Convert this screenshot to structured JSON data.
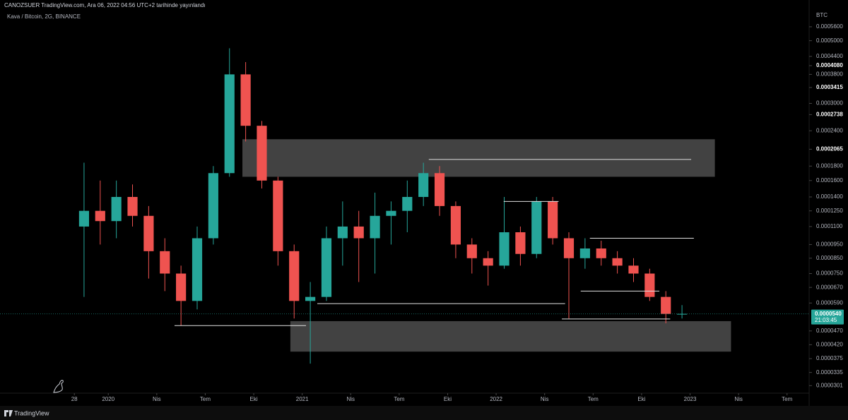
{
  "header": {
    "publisher": "CANOZSUER TradingView.com, Ara 06, 2022 04:56 UTC+2 tarihinde yayınlandı",
    "brand": "TradingView"
  },
  "chart_data": {
    "type": "candlestick",
    "title": "Kava / Bitcoin, 2G, BINANCE",
    "y_unit": "BTC",
    "log_scale": true,
    "grid": false,
    "up_color": "#26a69a",
    "down_color": "#ef5350",
    "x": [
      "2019-11",
      "2019-12",
      "2020-01",
      "2020-02",
      "2020-03",
      "2020-04",
      "2020-05",
      "2020-06",
      "2020-07",
      "2020-08",
      "2020-09",
      "2020-10",
      "2020-11",
      "2020-12",
      "2021-01",
      "2021-02",
      "2021-03",
      "2021-04",
      "2021-05",
      "2021-06",
      "2021-07",
      "2021-08",
      "2021-09",
      "2021-10",
      "2021-11",
      "2021-12",
      "2022-01",
      "2022-02",
      "2022-03",
      "2022-04",
      "2022-05",
      "2022-06",
      "2022-07",
      "2022-08",
      "2022-09",
      "2022-10",
      "2022-11",
      "2022-12"
    ],
    "open": [
      0.00011,
      0.000125,
      0.000115,
      0.00014,
      0.00012,
      9e-05,
      7.5e-05,
      6e-05,
      0.0001,
      0.00017,
      0.00038,
      0.00025,
      0.00016,
      9e-05,
      6e-05,
      6.2e-05,
      0.0001,
      0.00011,
      0.0001,
      0.00012,
      0.000125,
      0.00014,
      0.00017,
      0.00013,
      9.5e-05,
      8.5e-05,
      8e-05,
      0.000105,
      8.8e-05,
      0.000135,
      0.0001,
      8.5e-05,
      9.2e-05,
      8.5e-05,
      8e-05,
      7.5e-05,
      6.2e-05,
      5.4e-05
    ],
    "high": [
      0.000185,
      0.00016,
      0.00016,
      0.000155,
      0.00013,
      0.0001,
      8e-05,
      0.00011,
      0.00018,
      0.00047,
      0.00042,
      0.00026,
      0.000165,
      9.5e-05,
      7e-05,
      0.00011,
      0.000135,
      0.000125,
      0.000145,
      0.000135,
      0.00016,
      0.000185,
      0.00018,
      0.000135,
      0.0001,
      9e-05,
      0.00014,
      0.00011,
      0.00014,
      0.00014,
      0.000105,
      0.0001,
      9.8e-05,
      9e-05,
      8.5e-05,
      7.8e-05,
      6.5e-05,
      5.8e-05
    ],
    "low": [
      6.2e-05,
      9.5e-05,
      0.0001,
      0.00011,
      7.2e-05,
      6.5e-05,
      4.9e-05,
      5.6e-05,
      9.5e-05,
      0.000165,
      0.00022,
      0.00015,
      8e-05,
      5.2e-05,
      3.6e-05,
      6e-05,
      8e-05,
      7e-05,
      7.5e-05,
      9.5e-05,
      0.000105,
      0.00013,
      0.00012,
      8.5e-05,
      7.5e-05,
      6.8e-05,
      7.8e-05,
      8e-05,
      8.5e-05,
      9.5e-05,
      5.2e-05,
      7.8e-05,
      8e-05,
      7.5e-05,
      7e-05,
      6e-05,
      5e-05,
      5.2e-05
    ],
    "close": [
      0.000125,
      0.000115,
      0.00014,
      0.00012,
      9e-05,
      7.5e-05,
      6e-05,
      0.0001,
      0.00017,
      0.00038,
      0.00025,
      0.00016,
      9e-05,
      6e-05,
      6.2e-05,
      0.0001,
      0.00011,
      0.0001,
      0.00012,
      0.000125,
      0.00014,
      0.00017,
      0.00013,
      9.5e-05,
      8.5e-05,
      8e-05,
      0.000105,
      8.8e-05,
      0.000135,
      0.0001,
      8.5e-05,
      9.2e-05,
      8.5e-05,
      8e-05,
      7.5e-05,
      6.2e-05,
      5.4e-05,
      5.4e-05
    ],
    "ylim": [
      2.83e-05,
      0.000639
    ],
    "yticks": [
      {
        "value": 0.00056,
        "label": "0.0005600"
      },
      {
        "value": 0.0005,
        "label": "0.0005000"
      },
      {
        "value": 0.00044,
        "label": "0.0004400"
      },
      {
        "value": 0.000408,
        "label": "0.0004080",
        "bold": true
      },
      {
        "value": 0.00038,
        "label": "0.0003800"
      },
      {
        "value": 0.0003415,
        "label": "0.0003415",
        "bold": true
      },
      {
        "value": 0.0003,
        "label": "0.0003000"
      },
      {
        "value": 0.0002738,
        "label": "0.0002738",
        "bold": true
      },
      {
        "value": 0.00024,
        "label": "0.0002400"
      },
      {
        "value": 0.0002065,
        "label": "0.0002065",
        "bold": true
      },
      {
        "value": 0.00018,
        "label": "0.0001800"
      },
      {
        "value": 0.00016,
        "label": "0.0001600"
      },
      {
        "value": 0.00014,
        "label": "0.0001400"
      },
      {
        "value": 0.000125,
        "label": "0.0001250"
      },
      {
        "value": 0.00011,
        "label": "0.0001100"
      },
      {
        "value": 9.5e-05,
        "label": "0.0000950"
      },
      {
        "value": 8.5e-05,
        "label": "0.0000850"
      },
      {
        "value": 7.5e-05,
        "label": "0.0000750"
      },
      {
        "value": 6.7e-05,
        "label": "0.0000670"
      },
      {
        "value": 5.9e-05,
        "label": "0.0000590"
      },
      {
        "value": 4.7e-05,
        "label": "0.0000470"
      },
      {
        "value": 4.2e-05,
        "label": "0.0000420"
      },
      {
        "value": 3.75e-05,
        "label": "0.0000375"
      },
      {
        "value": 3.35e-05,
        "label": "0.0000335"
      },
      {
        "value": 3.01e-05,
        "label": "0.0000301"
      }
    ],
    "xlim": [
      "2019-06-10",
      "2023-08-12"
    ],
    "xticks": [
      {
        "value": "2019-10-28",
        "label": "28"
      },
      {
        "value": "2020-01",
        "label": "2020"
      },
      {
        "value": "2020-04",
        "label": "Nis"
      },
      {
        "value": "2020-07",
        "label": "Tem"
      },
      {
        "value": "2020-10",
        "label": "Eki"
      },
      {
        "value": "2021-01",
        "label": "2021"
      },
      {
        "value": "2021-04",
        "label": "Nis"
      },
      {
        "value": "2021-07",
        "label": "Tem"
      },
      {
        "value": "2021-10",
        "label": "Eki"
      },
      {
        "value": "2022-01",
        "label": "2022"
      },
      {
        "value": "2022-04",
        "label": "Nis"
      },
      {
        "value": "2022-07",
        "label": "Tem"
      },
      {
        "value": "2022-10",
        "label": "Eki"
      },
      {
        "value": "2023-01",
        "label": "2023"
      },
      {
        "value": "2023-04",
        "label": "Nis"
      },
      {
        "value": "2023-07",
        "label": "Tem"
      }
    ],
    "current": {
      "value": 5.4e-05,
      "label": "0.0000540",
      "countdown": "21:03:45",
      "color": "#26a69a"
    },
    "zones": [
      {
        "top": 0.000224,
        "bottom": 0.000165,
        "from": "2020-09-10",
        "to": "2023-02-17"
      },
      {
        "top": 5.09e-05,
        "bottom": 3.97e-05,
        "from": "2020-12-09",
        "to": "2023-03-17"
      }
    ],
    "levels": [
      {
        "value": 0.00019,
        "from": "2021-08-26",
        "to": "2023-01-03"
      },
      {
        "value": 0.000135,
        "from": "2022-01-15",
        "to": "2022-04-27"
      },
      {
        "value": 0.0001,
        "from": "2022-06-25",
        "to": "2023-01-08"
      },
      {
        "value": 6.5e-05,
        "from": "2022-06-08",
        "to": "2022-11-04"
      },
      {
        "value": 5.87e-05,
        "from": "2021-01-29",
        "to": "2022-05-09"
      },
      {
        "value": 4.91e-05,
        "from": "2020-05-04",
        "to": "2021-01-08"
      },
      {
        "value": 5.18e-05,
        "from": "2022-05-03",
        "to": "2022-11-24"
      }
    ]
  }
}
